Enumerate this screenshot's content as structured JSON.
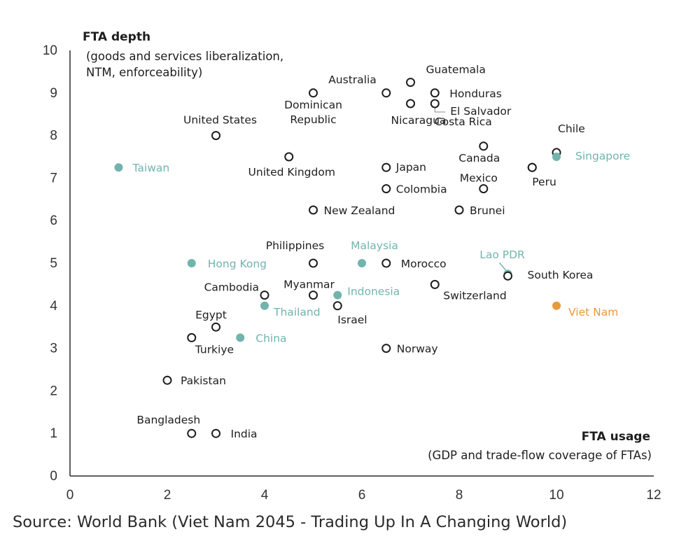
{
  "chart_data": {
    "type": "scatter",
    "xlim": [
      0,
      12
    ],
    "ylim": [
      0,
      10
    ],
    "x_ticks": [
      "0",
      "2",
      "4",
      "6",
      "8",
      "10",
      "12"
    ],
    "y_ticks": [
      "0",
      "1",
      "2",
      "3",
      "4",
      "5",
      "6",
      "7",
      "8",
      "9",
      "10"
    ],
    "grid": false,
    "y_title": "FTA depth",
    "y_subtitle_lines": [
      "(goods and services liberalization,",
      "NTM, enforceability)"
    ],
    "x_title": "FTA usage",
    "x_subtitle": "(GDP and trade-flow coverage of FTAs)",
    "colors": {
      "default": "#1e1e1e",
      "highlight": "#72b4ad",
      "focus": "#e89a3c"
    },
    "points": [
      {
        "label": "Australia",
        "x": 6.5,
        "y": 9.0,
        "style": "hollow",
        "color": "default"
      },
      {
        "label": "Guatemala",
        "x": 7.0,
        "y": 9.25,
        "style": "hollow",
        "color": "default"
      },
      {
        "label": "Honduras",
        "x": 7.5,
        "y": 9.0,
        "style": "hollow",
        "color": "default"
      },
      {
        "label": "Nicaragua",
        "x": 7.0,
        "y": 8.75,
        "style": "hollow",
        "color": "default"
      },
      {
        "label": "El Salvador",
        "x": 7.5,
        "y": 8.75,
        "style": "hollow",
        "color": "default"
      },
      {
        "label": "Dominican Republic",
        "x": 5.0,
        "y": 9.0,
        "style": "hollow",
        "color": "default"
      },
      {
        "label": "United States",
        "x": 3.0,
        "y": 8.0,
        "style": "hollow",
        "color": "default"
      },
      {
        "label": "United Kingdom",
        "x": 4.5,
        "y": 7.5,
        "style": "hollow",
        "color": "default"
      },
      {
        "label": "Japan",
        "x": 6.5,
        "y": 7.25,
        "style": "hollow",
        "color": "default"
      },
      {
        "label": "Colombia",
        "x": 6.5,
        "y": 6.75,
        "style": "hollow",
        "color": "default"
      },
      {
        "label": "New Zealand",
        "x": 5.0,
        "y": 6.25,
        "style": "hollow",
        "color": "default"
      },
      {
        "label": "Costa Rica",
        "x": 8.5,
        "y": 7.75,
        "style": "hollow",
        "color": "default"
      },
      {
        "label": "Canada",
        "x": 9.5,
        "y": 7.25,
        "style": "hollow",
        "color": "default"
      },
      {
        "label": "Mexico",
        "x": 8.5,
        "y": 6.75,
        "style": "hollow",
        "color": "default"
      },
      {
        "label": "Peru",
        "x": 9.5,
        "y": 7.25,
        "style": "hollow",
        "color": "default"
      },
      {
        "label": "Brunei",
        "x": 8.0,
        "y": 6.25,
        "style": "hollow",
        "color": "default"
      },
      {
        "label": "Chile",
        "x": 10.0,
        "y": 7.6,
        "style": "hollow",
        "color": "default"
      },
      {
        "label": "Singapore",
        "x": 10.0,
        "y": 7.5,
        "style": "filled",
        "color": "highlight"
      },
      {
        "label": "Taiwan",
        "x": 1.0,
        "y": 7.25,
        "style": "filled",
        "color": "highlight"
      },
      {
        "label": "Philippines",
        "x": 5.0,
        "y": 5.0,
        "style": "hollow",
        "color": "default"
      },
      {
        "label": "Malaysia",
        "x": 6.0,
        "y": 5.0,
        "style": "filled",
        "color": "highlight"
      },
      {
        "label": "Morocco",
        "x": 6.5,
        "y": 5.0,
        "style": "hollow",
        "color": "default"
      },
      {
        "label": "Hong Kong",
        "x": 2.5,
        "y": 5.0,
        "style": "filled",
        "color": "highlight"
      },
      {
        "label": "Lao PDR",
        "x": 9.0,
        "y": 4.75,
        "style": "filled",
        "color": "highlight"
      },
      {
        "label": "South Korea",
        "x": 9.0,
        "y": 4.7,
        "style": "hollow",
        "color": "default"
      },
      {
        "label": "Switzerland",
        "x": 7.5,
        "y": 4.5,
        "style": "hollow",
        "color": "default"
      },
      {
        "label": "Cambodia",
        "x": 4.0,
        "y": 4.25,
        "style": "hollow",
        "color": "default"
      },
      {
        "label": "Myanmar",
        "x": 5.0,
        "y": 4.25,
        "style": "hollow",
        "color": "default"
      },
      {
        "label": "Indonesia",
        "x": 5.5,
        "y": 4.25,
        "style": "filled",
        "color": "highlight"
      },
      {
        "label": "Thailand",
        "x": 4.0,
        "y": 4.0,
        "style": "filled",
        "color": "highlight"
      },
      {
        "label": "Israel",
        "x": 5.5,
        "y": 4.0,
        "style": "hollow",
        "color": "default"
      },
      {
        "label": "Viet Nam",
        "x": 10.0,
        "y": 4.0,
        "style": "filled",
        "color": "focus"
      },
      {
        "label": "Egypt",
        "x": 3.0,
        "y": 3.5,
        "style": "hollow",
        "color": "default"
      },
      {
        "label": "Turkiye",
        "x": 2.5,
        "y": 3.25,
        "style": "hollow",
        "color": "default"
      },
      {
        "label": "China",
        "x": 3.5,
        "y": 3.25,
        "style": "filled",
        "color": "highlight"
      },
      {
        "label": "Norway",
        "x": 6.5,
        "y": 3.0,
        "style": "hollow",
        "color": "default"
      },
      {
        "label": "Pakistan",
        "x": 2.0,
        "y": 2.25,
        "style": "hollow",
        "color": "default"
      },
      {
        "label": "Bangladesh",
        "x": 2.5,
        "y": 1.0,
        "style": "hollow",
        "color": "default"
      },
      {
        "label": "India",
        "x": 3.0,
        "y": 1.0,
        "style": "hollow",
        "color": "default"
      }
    ]
  },
  "source_text": "Source: World Bank (Viet Nam 2045 - Trading Up In A Changing World)"
}
